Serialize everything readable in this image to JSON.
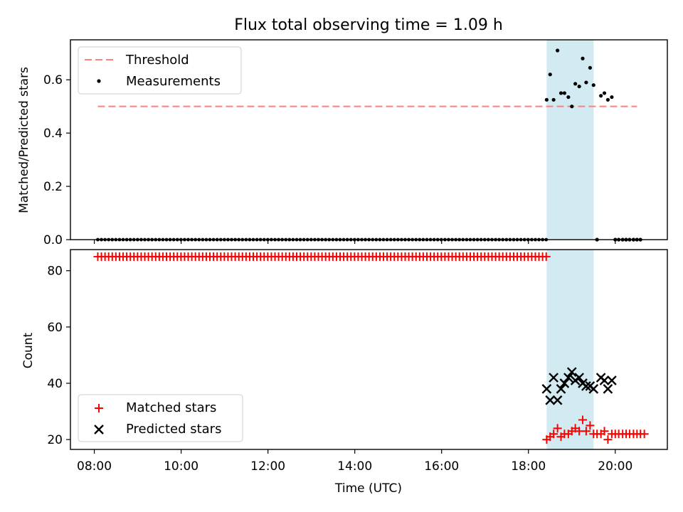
{
  "title": "Flux total observing time = 1.09 h",
  "colors": {
    "threshold": "#ff7f7f",
    "measurements": "#000000",
    "matched": "#ff0000",
    "predicted": "#000000",
    "observing_band": "#add8e6"
  },
  "chart_data": [
    {
      "type": "scatter",
      "panel": "top",
      "ylabel": "Matched/Predicted stars",
      "xlim": [
        7.45,
        21.2
      ],
      "ylim": [
        0.0,
        0.75
      ],
      "yticks": [
        0.0,
        0.2,
        0.4,
        0.6
      ],
      "ytick_labels": [
        "0.0",
        "0.2",
        "0.4",
        "0.6"
      ],
      "xticks": [
        8,
        10,
        12,
        14,
        16,
        18,
        20
      ],
      "grid": false,
      "legend_position": "upper-left",
      "observing_band": [
        18.42,
        19.5
      ],
      "threshold": {
        "name": "Threshold",
        "x": [
          8.08,
          20.5
        ],
        "y": 0.5,
        "style": "dashed"
      },
      "zero_series": {
        "x_start": 8.08,
        "x_end": 18.42,
        "step": 0.0833,
        "y": 0.0
      },
      "series": [
        {
          "name": "Measurements",
          "x": [
            18.42,
            18.5,
            18.58,
            18.67,
            18.75,
            18.83,
            18.92,
            19.0,
            19.08,
            19.17,
            19.25,
            19.33,
            19.42,
            19.5,
            19.58,
            19.67,
            19.75,
            19.83,
            19.92,
            20.0,
            20.08,
            20.17,
            20.25,
            20.33,
            20.42,
            20.5,
            20.58
          ],
          "y": [
            0.525,
            0.62,
            0.525,
            0.71,
            0.55,
            0.55,
            0.535,
            0.5,
            0.585,
            0.575,
            0.68,
            0.59,
            0.645,
            0.58,
            0.0,
            0.54,
            0.55,
            0.525,
            0.535,
            0.0,
            0.0,
            0.0,
            0.0,
            0.0,
            0.0,
            0.0,
            0.0
          ]
        }
      ]
    },
    {
      "type": "scatter",
      "panel": "bottom",
      "xlabel": "Time (UTC)",
      "ylabel": "Count",
      "xlim": [
        7.45,
        21.2
      ],
      "ylim": [
        16.5,
        87.5
      ],
      "yticks": [
        20,
        40,
        60,
        80
      ],
      "ytick_labels": [
        "20",
        "40",
        "60",
        "80"
      ],
      "xticks": [
        8,
        10,
        12,
        14,
        16,
        18,
        20
      ],
      "xtick_labels": [
        "08:00",
        "10:00",
        "12:00",
        "14:00",
        "16:00",
        "18:00",
        "20:00"
      ],
      "grid": false,
      "legend_position": "lower-left",
      "observing_band": [
        18.42,
        19.5
      ],
      "constant_run": {
        "series": "Matched stars",
        "x_start": 8.08,
        "x_end": 18.42,
        "step": 0.0833,
        "y": 85
      },
      "series": [
        {
          "name": "Matched stars",
          "marker": "plus",
          "x": [
            18.42,
            18.5,
            18.58,
            18.67,
            18.75,
            18.83,
            18.92,
            19.0,
            19.08,
            19.17,
            19.25,
            19.33,
            19.42,
            19.5,
            19.58,
            19.67,
            19.75,
            19.83,
            19.92,
            20.0,
            20.08,
            20.17,
            20.25,
            20.33,
            20.42,
            20.5,
            20.58,
            20.67
          ],
          "y": [
            20,
            21,
            22,
            24,
            21,
            22,
            22,
            23,
            24,
            23,
            27,
            23,
            25,
            22,
            22,
            22,
            23,
            20,
            22,
            22,
            22,
            22,
            22,
            22,
            22,
            22,
            22,
            22
          ]
        },
        {
          "name": "Predicted stars",
          "marker": "x",
          "x": [
            18.42,
            18.5,
            18.58,
            18.67,
            18.75,
            18.83,
            18.92,
            19.0,
            19.08,
            19.17,
            19.25,
            19.33,
            19.42,
            19.5,
            19.67,
            19.75,
            19.83,
            19.92
          ],
          "y": [
            38,
            34,
            42,
            34,
            38,
            40,
            42,
            44,
            41,
            42,
            40,
            39,
            39,
            38,
            42,
            41,
            38,
            41
          ]
        }
      ]
    }
  ]
}
